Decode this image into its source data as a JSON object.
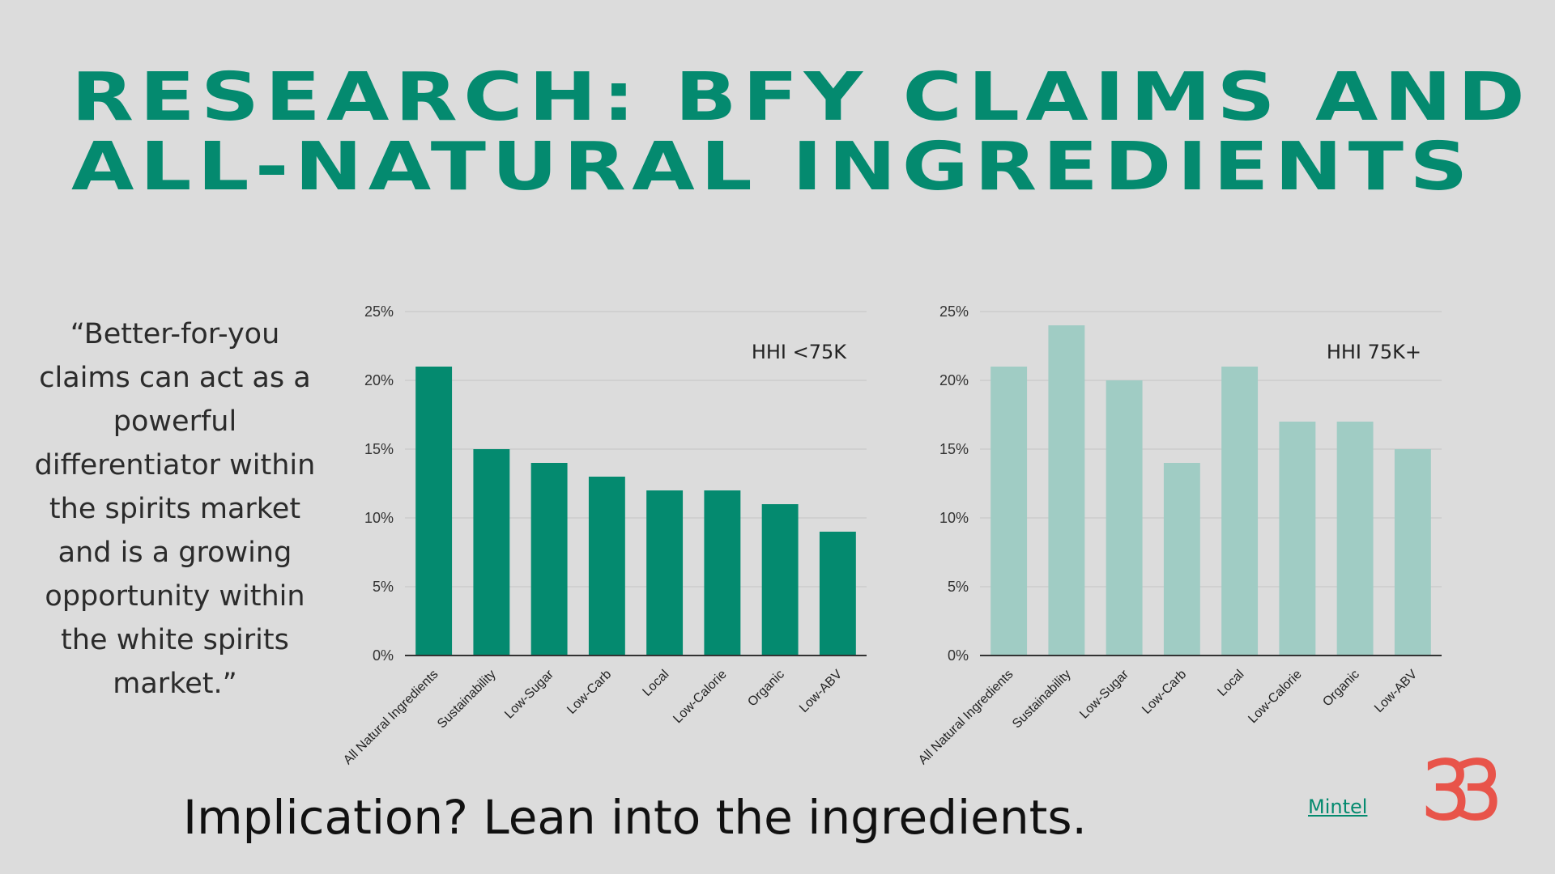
{
  "title_line1": "RESEARCH: BFY CLAIMS AND",
  "title_line2": "ALL-NATURAL INGREDIENTS",
  "quote": "“Better-for-you claims can act as a powerful differentiator within the spirits market and is a growing opportunity within the white spirits market.”",
  "implication": "Implication? Lean into the ingredients.",
  "source_link": "Mintel",
  "logo_text": "33",
  "colors": {
    "accent": "#048a6f",
    "series1": "#048a6f",
    "series2": "#a0ccc4",
    "logo": "#e8544a"
  },
  "chart_data": [
    {
      "type": "bar",
      "annotation": "HHI <75K",
      "categories": [
        "All Natural Ingredients",
        "Sustainability",
        "Low-Sugar",
        "Low-Carb",
        "Local",
        "Low-Calorie",
        "Organic",
        "Low-ABV"
      ],
      "values": [
        21,
        15,
        14,
        13,
        12,
        12,
        11,
        9
      ],
      "yticks": [
        "0%",
        "5%",
        "10%",
        "15%",
        "20%",
        "25%"
      ],
      "ylim": [
        0,
        25
      ],
      "grid": true
    },
    {
      "type": "bar",
      "annotation": "HHI 75K+",
      "categories": [
        "All Natural Ingredients",
        "Sustainability",
        "Low-Sugar",
        "Low-Carb",
        "Local",
        "Low-Calorie",
        "Organic",
        "Low-ABV"
      ],
      "values": [
        21,
        24,
        20,
        14,
        21,
        17,
        17,
        15
      ],
      "yticks": [
        "0%",
        "5%",
        "10%",
        "15%",
        "20%",
        "25%"
      ],
      "ylim": [
        0,
        25
      ],
      "grid": true
    }
  ]
}
